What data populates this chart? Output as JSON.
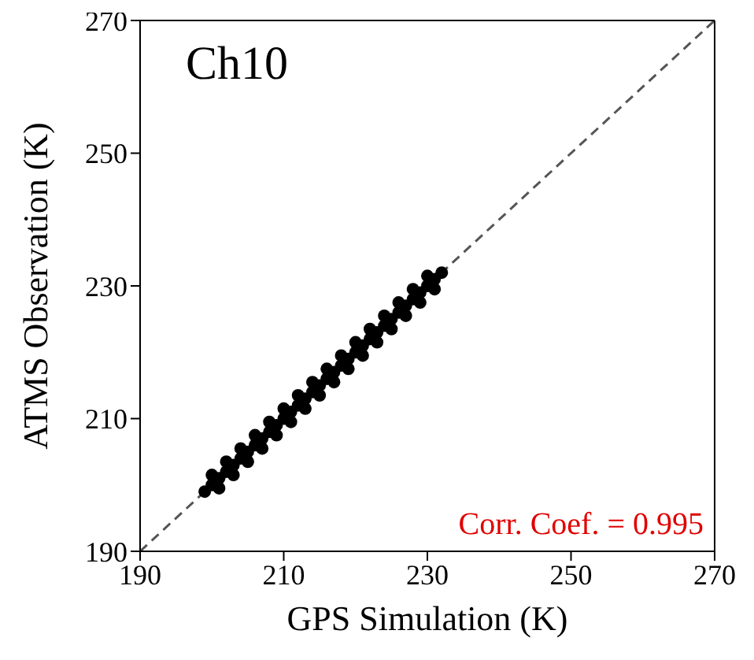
{
  "chart_data": {
    "type": "scatter",
    "xlabel": "GPS Simulation (K)",
    "ylabel": "ATMS Observation (K)",
    "xlim": [
      190,
      270
    ],
    "xticks": [
      190,
      210,
      230,
      250,
      270
    ],
    "ylim": [
      190,
      270
    ],
    "yticks": [
      190,
      210,
      230,
      250,
      270
    ],
    "marker": "circle",
    "annotations": [
      "Ch10",
      "Corr. Coef. = 0.995"
    ],
    "series": [
      {
        "color": "#000000",
        "x": [
          199,
          200,
          201,
          202,
          203,
          204,
          205,
          206,
          207,
          208,
          209,
          210,
          211,
          212,
          213,
          214,
          215,
          216,
          217,
          218,
          219,
          220,
          221,
          222,
          223,
          224,
          225,
          226,
          227,
          228,
          229,
          230,
          231,
          232,
          200,
          202,
          204,
          206,
          208,
          210,
          212,
          214,
          216,
          218,
          220,
          222,
          224,
          226,
          228,
          230,
          201,
          203,
          205,
          207,
          209,
          211,
          213,
          215,
          217,
          219,
          221,
          223,
          225,
          227,
          229,
          231
        ],
        "values": [
          199,
          200,
          201,
          202,
          203,
          204,
          205,
          206,
          207,
          208,
          209,
          210,
          211,
          212,
          213,
          214,
          215,
          216,
          217,
          218,
          219,
          220,
          221,
          222,
          223,
          224,
          225,
          226,
          227,
          228,
          229,
          230,
          231,
          232,
          201.5,
          203.5,
          205.5,
          207.5,
          209.5,
          211.5,
          213.5,
          215.5,
          217.5,
          219.5,
          221.5,
          223.5,
          225.5,
          227.5,
          229.5,
          231.5,
          199.5,
          201.5,
          203.5,
          205.5,
          207.5,
          209.5,
          211.5,
          213.5,
          215.5,
          217.5,
          219.5,
          221.5,
          223.5,
          225.5,
          227.5,
          229.5
        ]
      },
      {
        "type": "line",
        "color": "#555555",
        "line_style": "dashed",
        "marker": "none",
        "x": [
          190,
          270
        ],
        "values": [
          190,
          270
        ]
      }
    ]
  }
}
